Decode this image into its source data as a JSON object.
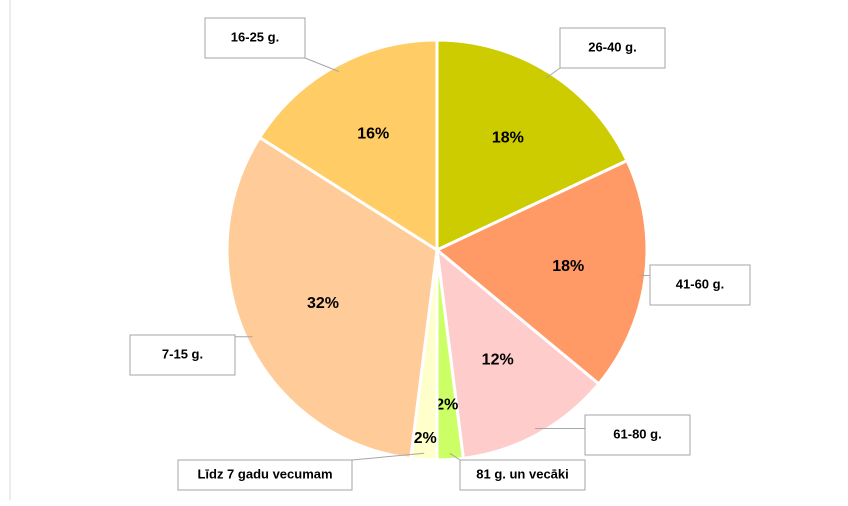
{
  "chart_data": {
    "type": "pie",
    "categories": [
      "26-40 g.",
      "41-60 g.",
      "61-80 g.",
      "81 g. un vecāki",
      "Līdz 7 gadu vecumam",
      "7-15 g.",
      "16-25 g."
    ],
    "values": [
      18,
      18,
      12,
      2,
      2,
      32,
      16
    ],
    "value_labels": [
      "18%",
      "18%",
      "12%",
      "2%",
      "2%",
      "32%",
      "16%"
    ],
    "colors": [
      "#cccc00",
      "#ff9966",
      "#ffcccc",
      "#ccff66",
      "#ffffcc",
      "#ffcc99",
      "#ffcc66"
    ]
  }
}
